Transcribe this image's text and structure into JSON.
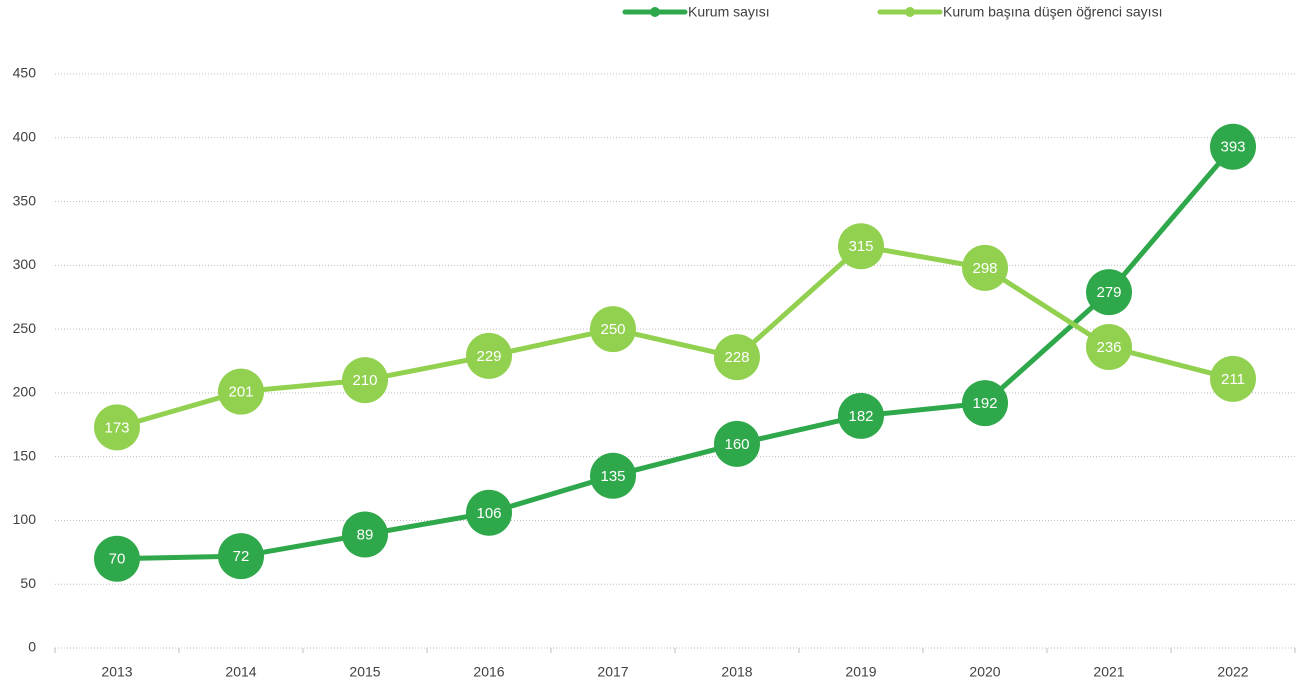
{
  "chart_data": {
    "type": "line",
    "categories": [
      "2013",
      "2014",
      "2015",
      "2016",
      "2017",
      "2018",
      "2019",
      "2020",
      "2021",
      "2022"
    ],
    "series": [
      {
        "name": "Kurum sayısı",
        "color": "#2ea84a",
        "values": [
          70,
          72,
          89,
          106,
          135,
          160,
          182,
          192,
          279,
          393
        ]
      },
      {
        "name": "Kurum başına düşen öğrenci sayısı",
        "color": "#92d050",
        "values": [
          173,
          201,
          210,
          229,
          250,
          228,
          315,
          298,
          236,
          211
        ]
      }
    ],
    "ylim": [
      0,
      450
    ],
    "yticks": [
      0,
      50,
      100,
      150,
      200,
      250,
      300,
      350,
      400,
      450
    ],
    "grid": true,
    "legend": "top"
  }
}
